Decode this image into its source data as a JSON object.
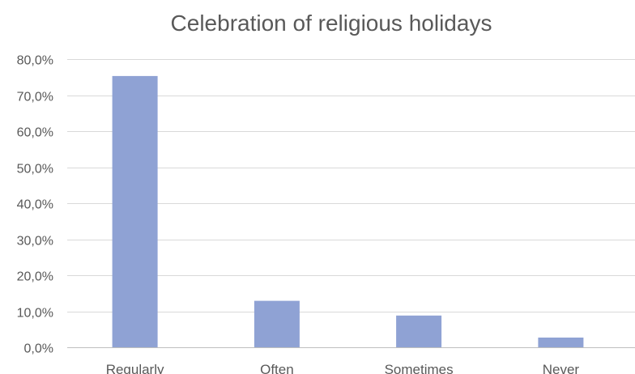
{
  "chart_data": {
    "type": "bar",
    "title": "Celebration of religious holidays",
    "xlabel": "",
    "ylabel": "",
    "categories": [
      "Regularly",
      "Often",
      "Sometimes",
      "Never"
    ],
    "values": [
      75.3,
      12.9,
      8.8,
      2.7
    ],
    "ylim": [
      0,
      80
    ],
    "yticks": [
      0,
      10,
      20,
      30,
      40,
      50,
      60,
      70,
      80
    ],
    "ytick_labels": [
      "0,0%",
      "10,0%",
      "20,0%",
      "30,0%",
      "40,0%",
      "50,0%",
      "60,0%",
      "70,0%",
      "80,0%"
    ],
    "grid": true,
    "legend": "none",
    "bar_color": "#8fa2d4"
  }
}
